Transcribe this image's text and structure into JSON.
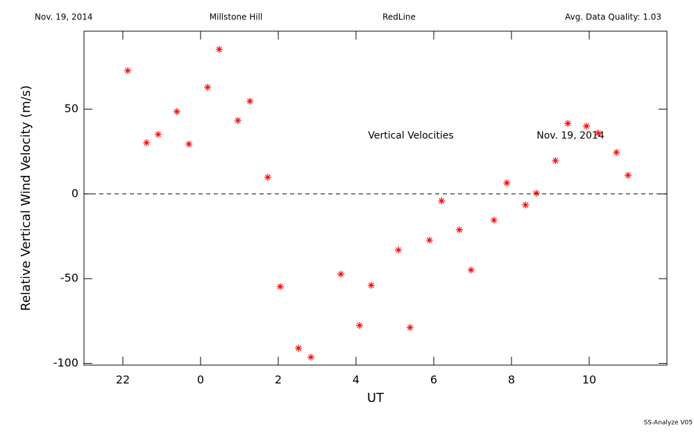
{
  "header": {
    "date": "Nov. 19, 2014",
    "site": "Millstone Hill",
    "line": "RedLine",
    "quality": "Avg. Data Quality: 1.03"
  },
  "footer": "SS-Analyze V05",
  "chart_data": {
    "type": "scatter",
    "xlabel": "UT",
    "ylabel": "Relative Vertical Wind Velocity (m/s)",
    "annotations": [
      "Vertical Velocities",
      "Nov. 19, 2014"
    ],
    "xlim": [
      -3,
      12
    ],
    "xticks": [
      {
        "value": -2,
        "label": "22"
      },
      0,
      2,
      4,
      6,
      8,
      10
    ],
    "ylim": [
      -101,
      96
    ],
    "yticks": [
      -100,
      -50,
      0,
      50
    ],
    "hline": 0,
    "color": "#ff0000",
    "x": [
      -1.875,
      -1.39,
      -1.09,
      -0.61,
      -0.3,
      0.18,
      0.48,
      0.96,
      1.27,
      1.73,
      2.05,
      2.52,
      2.84,
      3.61,
      4.09,
      4.39,
      5.09,
      5.39,
      5.89,
      6.2,
      6.66,
      6.96,
      7.55,
      7.88,
      8.36,
      8.64,
      9.13,
      9.45,
      9.93,
      10.23,
      10.7,
      11.0
    ],
    "values": [
      72.7,
      30.2,
      35.1,
      48.6,
      29.4,
      62.9,
      85.3,
      43.3,
      54.7,
      9.8,
      -54.7,
      -91.0,
      -96.3,
      -47.3,
      -77.6,
      -53.9,
      -33.1,
      -78.8,
      -27.3,
      -4.1,
      -21.2,
      -44.9,
      -15.5,
      6.5,
      -6.5,
      0.4,
      19.6,
      41.6,
      40.0,
      35.9,
      24.5,
      11.0
    ]
  }
}
